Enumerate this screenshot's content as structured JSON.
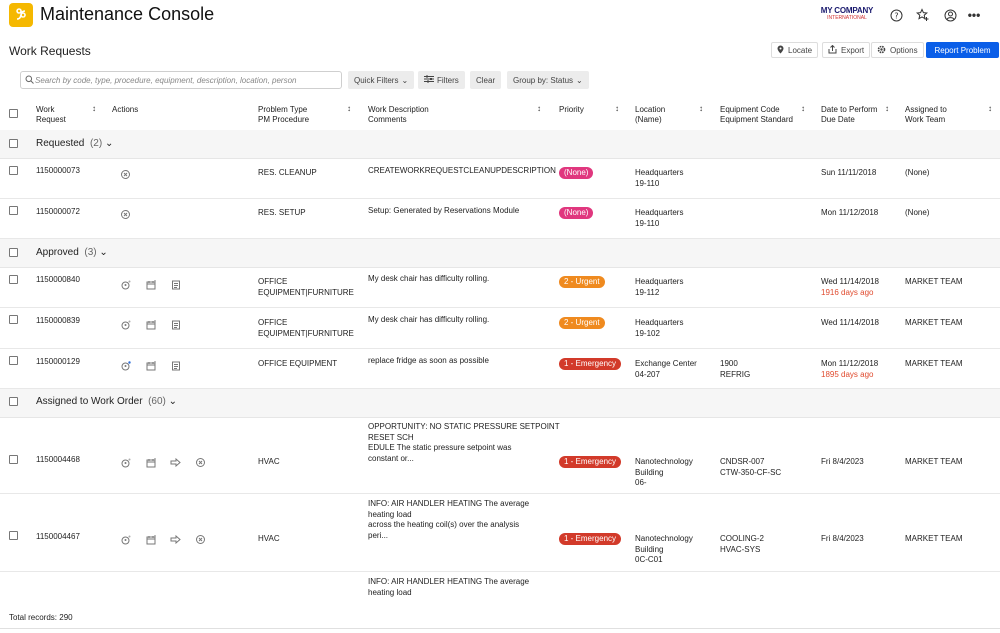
{
  "app": {
    "title": "Maintenance Console",
    "company_line1": "MY COMPANY",
    "company_line2": "INTERNATIONAL"
  },
  "page": {
    "title": "Work Requests"
  },
  "toolbar": {
    "locate": "Locate",
    "export": "Export",
    "options": "Options",
    "report": "Report Problem"
  },
  "filters": {
    "search_placeholder": "Search by code, type, procedure, equipment, description, location, person",
    "quick_filters": "Quick Filters",
    "filters": "Filters",
    "clear": "Clear",
    "group_by": "Group by: Status"
  },
  "columns": {
    "work_request": [
      "Work",
      "Request"
    ],
    "actions": "Actions",
    "problem_type": [
      "Problem Type",
      "PM Procedure"
    ],
    "description": [
      "Work Description",
      "Comments"
    ],
    "priority": "Priority",
    "location": [
      "Location",
      "(Name)"
    ],
    "equipment": [
      "Equipment Code",
      "Equipment Standard"
    ],
    "date": [
      "Date to Perform",
      "Due Date"
    ],
    "assigned": [
      "Assigned to",
      "Work Team"
    ]
  },
  "groups": {
    "requested": {
      "label": "Requested",
      "count": "(2)"
    },
    "approved": {
      "label": "Approved",
      "count": "(3)"
    },
    "assigned": {
      "label": "Assigned to Work Order",
      "count": "(60)"
    }
  },
  "rows": [
    {
      "id": "1150000073",
      "type": [
        "RES. CLEANUP"
      ],
      "desc": [
        "CREATEWORKREQUESTCLEANUPDESCRIPTION"
      ],
      "priority": "(None)",
      "loc": [
        "Headquarters",
        "19-110"
      ],
      "equip": [],
      "date": "Sun 11/11/2018",
      "due": "",
      "assigned": "(None)"
    },
    {
      "id": "1150000072",
      "type": [
        "RES. SETUP"
      ],
      "desc": [
        "Setup: Generated by Reservations Module"
      ],
      "priority": "(None)",
      "loc": [
        "Headquarters",
        "19-110"
      ],
      "equip": [],
      "date": "Mon 11/12/2018",
      "due": "",
      "assigned": "(None)"
    },
    {
      "id": "1150000840",
      "type": [
        "OFFICE",
        "EQUIPMENT|FURNITURE"
      ],
      "desc": [
        "My desk chair has difficulty rolling."
      ],
      "priority": "2 - Urgent",
      "loc": [
        "Headquarters",
        "19-112"
      ],
      "equip": [],
      "date": "Wed 11/14/2018",
      "due": "1916 days ago",
      "assigned": "MARKET TEAM"
    },
    {
      "id": "1150000839",
      "type": [
        "OFFICE",
        "EQUIPMENT|FURNITURE"
      ],
      "desc": [
        "My desk chair has difficulty rolling."
      ],
      "priority": "2 - Urgent",
      "loc": [
        "Headquarters",
        "19-102"
      ],
      "equip": [],
      "date": "Wed 11/14/2018",
      "due": "",
      "assigned": "MARKET TEAM"
    },
    {
      "id": "1150000129",
      "type": [
        "OFFICE EQUIPMENT"
      ],
      "desc": [
        "replace fridge as soon as possible"
      ],
      "priority": "1 - Emergency",
      "loc": [
        "Exchange Center",
        "04-207"
      ],
      "equip": [
        "1900",
        "REFRIG"
      ],
      "date": "Mon 11/12/2018",
      "due": "1895 days ago",
      "assigned": "MARKET TEAM"
    },
    {
      "id": "1150004468",
      "type": [
        "HVAC"
      ],
      "desc": [
        "OPPORTUNITY: NO STATIC PRESSURE SETPOINT",
        "RESET SCH",
        "EDULE The static pressure setpoint was",
        "constant or..."
      ],
      "priority": "1 - Emergency",
      "loc": [
        "Nanotechnology",
        "Building",
        "06-"
      ],
      "equip": [
        "CNDSR-007",
        "CTW-350-CF-SC"
      ],
      "date": "Fri 8/4/2023",
      "due": "",
      "assigned": "MARKET TEAM"
    },
    {
      "id": "1150004467",
      "type": [
        "HVAC"
      ],
      "desc": [
        "INFO: AIR HANDLER HEATING The average",
        "heating load",
        "across the heating coil(s) over the analysis",
        "peri..."
      ],
      "priority": "1 - Emergency",
      "loc": [
        "Nanotechnology",
        "Building",
        "0C-C01"
      ],
      "equip": [
        "COOLING-2",
        "HVAC-SYS"
      ],
      "date": "Fri 8/4/2023",
      "due": "",
      "assigned": "MARKET TEAM"
    },
    {
      "id": "",
      "type": [],
      "desc": [
        "INFO: AIR HANDLER HEATING The average",
        "heating load"
      ],
      "priority": "",
      "loc": [],
      "equip": [],
      "date": "",
      "due": "",
      "assigned": ""
    }
  ],
  "footer": {
    "total": "Total records: 290"
  },
  "colors": {
    "primary": "#0a5ee8",
    "none": "#e0377e",
    "urgent": "#ef8a1f",
    "emergency": "#d23a2a",
    "overdue": "#e04b2f"
  }
}
